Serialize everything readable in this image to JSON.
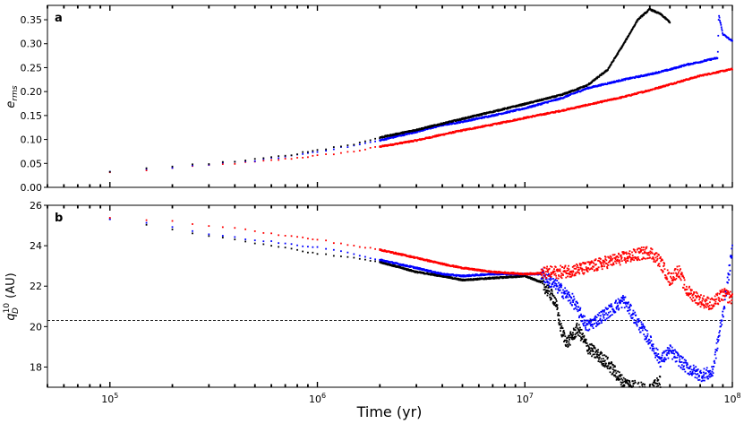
{
  "chart_data": [
    {
      "type": "scatter",
      "panel_label": "a",
      "ylabel": "e",
      "ylabel_sub": "rms",
      "xlabel": "Time (yr)",
      "xscale": "log",
      "xlim": [
        50000,
        100000000
      ],
      "ylim": [
        0,
        0.38
      ],
      "yticks": [
        "0.00",
        "0.05",
        "0.10",
        "0.15",
        "0.20",
        "0.25",
        "0.30",
        "0.35"
      ],
      "series": [
        {
          "name": "black",
          "color": "#000000",
          "x": [
            100000,
            150000,
            200000,
            250000,
            300000,
            400000,
            500000,
            700000,
            1000000,
            1500000,
            2000000,
            3000000,
            4000000,
            5000000,
            7000000,
            10000000,
            15000000,
            20000000,
            25000000,
            30000000,
            35000000,
            40000000,
            45000000,
            50000000
          ],
          "y": [
            0.034,
            0.04,
            0.044,
            0.047,
            0.05,
            0.054,
            0.058,
            0.066,
            0.078,
            0.09,
            0.104,
            0.12,
            0.133,
            0.143,
            0.158,
            0.174,
            0.193,
            0.213,
            0.245,
            0.3,
            0.35,
            0.372,
            0.362,
            0.345
          ]
        },
        {
          "name": "blue",
          "color": "#0000ff",
          "x": [
            100000,
            150000,
            200000,
            250000,
            300000,
            400000,
            500000,
            700000,
            1000000,
            1500000,
            2000000,
            3000000,
            4000000,
            5000000,
            7000000,
            10000000,
            15000000,
            20000000,
            30000000,
            40000000,
            50000000,
            60000000,
            70000000,
            80000000,
            85000000,
            86000000,
            90000000,
            100000000
          ],
          "y": [
            0.033,
            0.038,
            0.042,
            0.045,
            0.048,
            0.052,
            0.056,
            0.064,
            0.075,
            0.087,
            0.098,
            0.116,
            0.13,
            0.137,
            0.15,
            0.165,
            0.186,
            0.207,
            0.225,
            0.236,
            0.246,
            0.256,
            0.262,
            0.268,
            0.27,
            0.36,
            0.32,
            0.305
          ]
        },
        {
          "name": "red",
          "color": "#ff0000",
          "x": [
            100000,
            150000,
            200000,
            250000,
            300000,
            400000,
            500000,
            700000,
            1000000,
            1500000,
            2000000,
            3000000,
            4000000,
            5000000,
            7000000,
            10000000,
            15000000,
            20000000,
            30000000,
            40000000,
            50000000,
            70000000,
            100000000
          ],
          "y": [
            0.031,
            0.036,
            0.04,
            0.043,
            0.046,
            0.05,
            0.053,
            0.059,
            0.066,
            0.075,
            0.085,
            0.098,
            0.11,
            0.119,
            0.131,
            0.145,
            0.16,
            0.172,
            0.189,
            0.203,
            0.215,
            0.233,
            0.247
          ]
        }
      ]
    },
    {
      "type": "scatter",
      "panel_label": "b",
      "ylabel": "q",
      "ylabel_sub": "D",
      "ylabel_sup": "10",
      "ylabel_unit": " (AU)",
      "xlabel": "Time (yr)",
      "xscale": "log",
      "xlim": [
        50000,
        100000000
      ],
      "ylim": [
        17,
        26
      ],
      "yticks": [
        "18",
        "20",
        "22",
        "24",
        "26"
      ],
      "hline": 20.3,
      "series": [
        {
          "name": "black",
          "color": "#000000",
          "x": [
            100000,
            150000,
            200000,
            250000,
            300000,
            400000,
            500000,
            700000,
            1000000,
            1500000,
            2000000,
            3000000,
            4000000,
            5000000,
            7000000,
            10000000,
            12000000,
            14000000,
            15000000,
            16000000,
            18000000,
            20000000,
            25000000,
            30000000,
            35000000,
            40000000,
            45000000
          ],
          "y": [
            25.3,
            25.0,
            24.8,
            24.6,
            24.5,
            24.3,
            24.1,
            23.9,
            23.6,
            23.4,
            23.2,
            22.7,
            22.5,
            22.3,
            22.4,
            22.5,
            22.2,
            21.3,
            19.8,
            19.2,
            19.9,
            19.0,
            18.2,
            17.2,
            17.0,
            16.8,
            17.3
          ]
        },
        {
          "name": "blue",
          "color": "#0000ff",
          "x": [
            100000,
            150000,
            200000,
            250000,
            300000,
            400000,
            500000,
            700000,
            1000000,
            1500000,
            2000000,
            3000000,
            4000000,
            5000000,
            7000000,
            10000000,
            12000000,
            15000000,
            17000000,
            20000000,
            25000000,
            30000000,
            35000000,
            40000000,
            45000000,
            50000000,
            60000000,
            70000000,
            80000000,
            90000000,
            100000000
          ],
          "y": [
            25.3,
            25.1,
            24.9,
            24.7,
            24.6,
            24.4,
            24.3,
            24.1,
            23.9,
            23.6,
            23.3,
            22.9,
            22.6,
            22.5,
            22.6,
            22.6,
            22.6,
            21.8,
            21.3,
            20.0,
            20.7,
            21.3,
            20.2,
            19.3,
            18.3,
            18.8,
            18.0,
            17.6,
            17.7,
            20.6,
            23.8
          ]
        },
        {
          "name": "red",
          "color": "#ff0000",
          "x": [
            100000,
            150000,
            200000,
            250000,
            300000,
            400000,
            500000,
            700000,
            1000000,
            1500000,
            2000000,
            3000000,
            4000000,
            5000000,
            7000000,
            10000000,
            15000000,
            20000000,
            25000000,
            30000000,
            40000000,
            45000000,
            50000000,
            55000000,
            60000000,
            70000000,
            80000000,
            90000000,
            100000000
          ],
          "y": [
            25.4,
            25.3,
            25.2,
            25.1,
            25.0,
            24.9,
            24.7,
            24.5,
            24.3,
            24.0,
            23.8,
            23.4,
            23.1,
            22.9,
            22.7,
            22.6,
            22.7,
            22.9,
            23.2,
            23.4,
            23.7,
            23.2,
            22.3,
            22.8,
            21.8,
            21.3,
            21.1,
            21.6,
            21.4
          ]
        }
      ]
    }
  ]
}
